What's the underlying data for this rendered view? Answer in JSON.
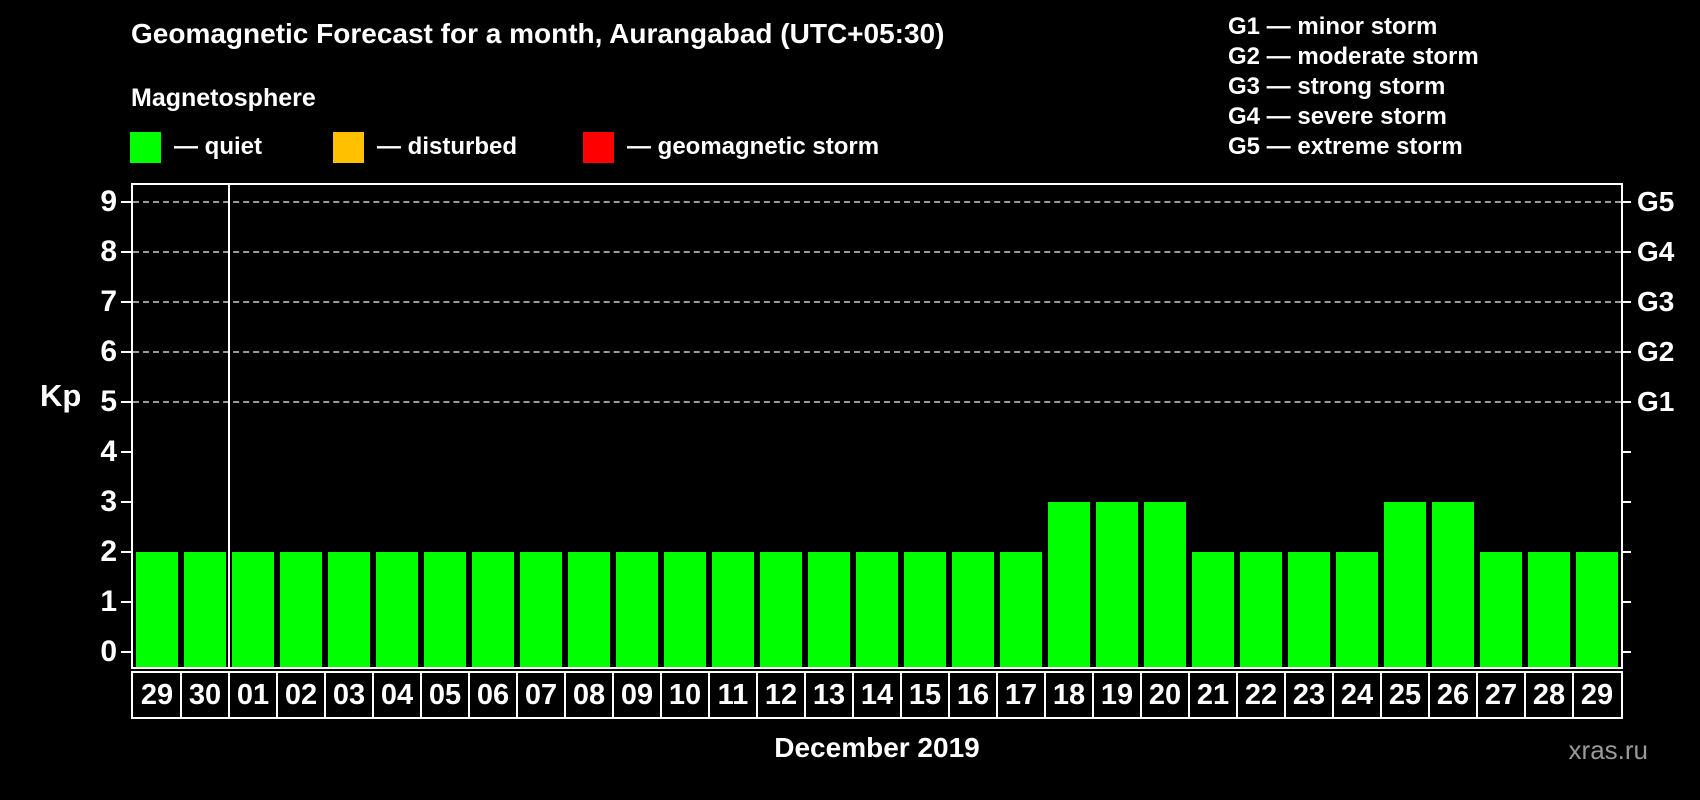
{
  "title": "Geomagnetic Forecast for a month, Aurangabad (UTC+05:30)",
  "subtitle": "Magnetosphere",
  "legend": {
    "items": [
      {
        "name": "quiet",
        "label": "— quiet",
        "color": "#00ff00"
      },
      {
        "name": "disturbed",
        "label": "— disturbed",
        "color": "#ffc000"
      },
      {
        "name": "geomagnetic-storm",
        "label": "— geomagnetic storm",
        "color": "#ff0000"
      }
    ]
  },
  "g_legend": [
    "G1 — minor storm",
    "G2 — moderate storm",
    "G3 — strong storm",
    "G4 — severe storm",
    "G5 — extreme storm"
  ],
  "watermark": "xras.ru",
  "chart_data": {
    "type": "bar",
    "title": "Geomagnetic Forecast for a month, Aurangabad (UTC+05:30)",
    "xlabel": "December 2019",
    "ylabel": "Kp",
    "ylim": [
      0,
      9
    ],
    "y_ticks": [
      0,
      1,
      2,
      3,
      4,
      5,
      6,
      7,
      8,
      9
    ],
    "right_axis_labels": [
      {
        "kp": 5,
        "label": "G1"
      },
      {
        "kp": 6,
        "label": "G2"
      },
      {
        "kp": 7,
        "label": "G3"
      },
      {
        "kp": 8,
        "label": "G4"
      },
      {
        "kp": 9,
        "label": "G5"
      }
    ],
    "gridlines_at": [
      5,
      6,
      7,
      8,
      9
    ],
    "grid_style": "dashed",
    "legend_position": "top",
    "bar_color": "#00ff00",
    "month_separator_after_index": 1,
    "categories": [
      "29",
      "30",
      "01",
      "02",
      "03",
      "04",
      "05",
      "06",
      "07",
      "08",
      "09",
      "10",
      "11",
      "12",
      "13",
      "14",
      "15",
      "16",
      "17",
      "18",
      "19",
      "20",
      "21",
      "22",
      "23",
      "24",
      "25",
      "26",
      "27",
      "28",
      "29"
    ],
    "values": [
      2,
      2,
      2,
      2,
      2,
      2,
      2,
      2,
      2,
      2,
      2,
      2,
      2,
      2,
      2,
      2,
      2,
      2,
      2,
      3,
      3,
      3,
      2,
      2,
      2,
      2,
      3,
      3,
      2,
      2,
      2
    ]
  }
}
